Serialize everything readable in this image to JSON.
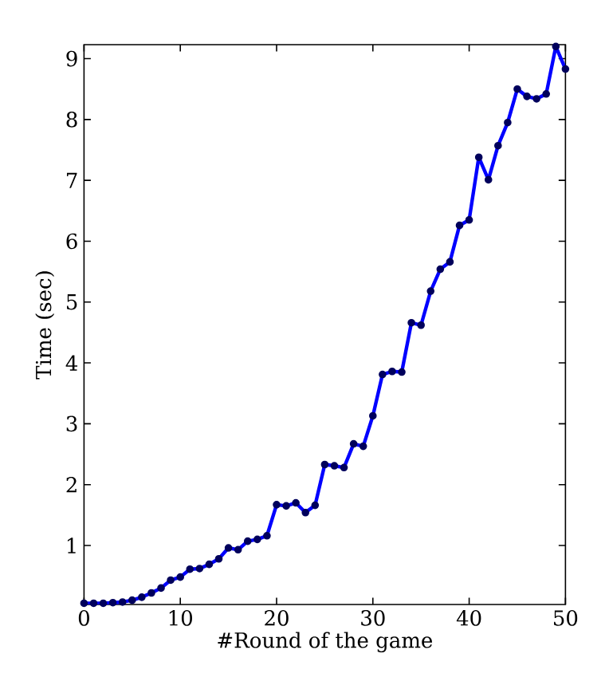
{
  "chart_data": {
    "type": "line",
    "xlabel": "#Round of the game",
    "ylabel": "Time (sec)",
    "x": [
      0,
      1,
      2,
      3,
      4,
      5,
      6,
      7,
      8,
      9,
      10,
      11,
      12,
      13,
      14,
      15,
      16,
      17,
      18,
      19,
      20,
      21,
      22,
      23,
      24,
      25,
      26,
      27,
      28,
      29,
      30,
      31,
      32,
      33,
      34,
      35,
      36,
      37,
      38,
      39,
      40,
      41,
      42,
      43,
      44,
      45,
      46,
      47,
      48,
      49,
      50
    ],
    "series": [
      {
        "color": "#0000ff",
        "values": [
          0.05,
          0.05,
          0.05,
          0.06,
          0.07,
          0.1,
          0.15,
          0.22,
          0.3,
          0.43,
          0.48,
          0.61,
          0.62,
          0.69,
          0.78,
          0.96,
          0.93,
          1.07,
          1.1,
          1.16,
          1.67,
          1.65,
          1.7,
          1.54,
          1.66,
          2.33,
          2.31,
          2.28,
          2.67,
          2.63,
          3.13,
          3.81,
          3.86,
          3.85,
          4.66,
          4.62,
          5.18,
          5.54,
          5.66,
          6.26,
          6.35,
          7.38,
          7.01,
          7.57,
          7.95,
          8.5,
          8.38,
          8.34,
          8.42,
          9.2,
          8.83
        ]
      }
    ],
    "xlim": [
      0,
      50
    ],
    "ylim": [
      0.03,
      9.23
    ],
    "xticks": [
      0,
      10,
      20,
      30,
      40,
      50
    ],
    "yticks": [
      1,
      2,
      3,
      4,
      5,
      6,
      7,
      8,
      9
    ],
    "marker": "circle",
    "line_style": "solid"
  }
}
